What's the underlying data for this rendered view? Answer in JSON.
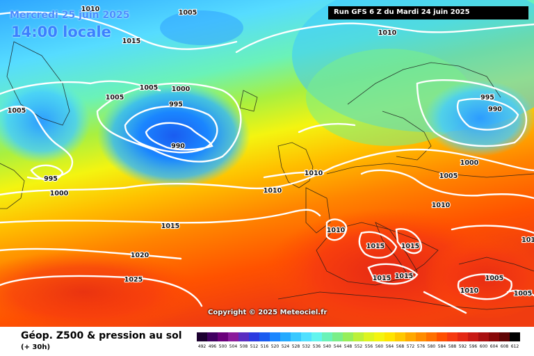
{
  "header": {
    "date": "Mercredi 25 juin 2025",
    "time": "14:00 locale",
    "run": "Run GFS 6 Z du Mardi 24 juin 2025"
  },
  "footer": {
    "copyright": "Copyright © 2025 Meteociel.fr",
    "title": "Géop. Z500 & pression au sol",
    "subtitle": "(+ 30h)"
  },
  "scale": {
    "ticks": [
      "492",
      "496",
      "500",
      "504",
      "508",
      "512",
      "516",
      "520",
      "524",
      "528",
      "532",
      "536",
      "540",
      "544",
      "548",
      "552",
      "556",
      "560",
      "564",
      "568",
      "572",
      "576",
      "580",
      "584",
      "588",
      "592",
      "596",
      "600",
      "604",
      "608",
      "612"
    ],
    "colors": [
      "#1c0030",
      "#400060",
      "#6a007a",
      "#8a1a9a",
      "#5a2cc0",
      "#2c3ae0",
      "#1a5cf0",
      "#1a86ff",
      "#24aaff",
      "#38c8ff",
      "#50e0ff",
      "#62f4ee",
      "#6af2b8",
      "#7aee88",
      "#96ee5a",
      "#bcf038",
      "#dcf420",
      "#f4f410",
      "#ffe400",
      "#ffc800",
      "#ffa800",
      "#ff8c00",
      "#ff7000",
      "#ff5000",
      "#f63a10",
      "#e42814",
      "#c81a14",
      "#a81010",
      "#880808",
      "#600404",
      "#000000"
    ]
  },
  "isobars": [
    {
      "text": "1010"
    },
    {
      "text": "1005"
    },
    {
      "text": "1015"
    },
    {
      "text": "1010"
    },
    {
      "text": "1005"
    },
    {
      "text": "1000"
    },
    {
      "text": "1005"
    },
    {
      "text": "995"
    },
    {
      "text": "990"
    },
    {
      "text": "1005"
    },
    {
      "text": "995"
    },
    {
      "text": "1000"
    },
    {
      "text": "1010"
    },
    {
      "text": "1010"
    },
    {
      "text": "1015"
    },
    {
      "text": "1020"
    },
    {
      "text": "1025"
    },
    {
      "text": "1010"
    },
    {
      "text": "1015"
    },
    {
      "text": "1015"
    },
    {
      "text": "1015"
    },
    {
      "text": "1015"
    },
    {
      "text": "995"
    },
    {
      "text": "990"
    },
    {
      "text": "1000"
    },
    {
      "text": "1005"
    },
    {
      "text": "1010"
    },
    {
      "text": "1010"
    },
    {
      "text": "1005"
    },
    {
      "text": "1005"
    },
    {
      "text": "101"
    }
  ]
}
